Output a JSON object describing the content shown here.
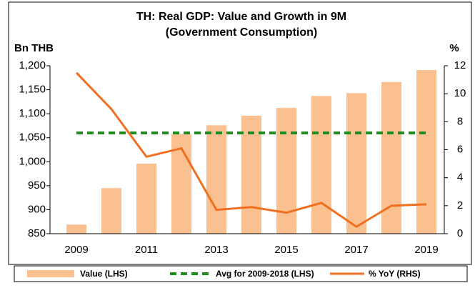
{
  "chart_data": {
    "type": "bar-line",
    "title": "TH: Real GDP: Value and Growth in 9M",
    "subtitle": "(Government Consumption)",
    "y_label": "Bn THB",
    "y2_label": "%",
    "categories": [
      "2009",
      null,
      "2011",
      null,
      "2013",
      null,
      "2015",
      null,
      "2017",
      null,
      "2019"
    ],
    "series": [
      {
        "name": "Value (LHS)",
        "type": "bar",
        "color": "#fac08f",
        "axis": "y",
        "values": [
          869,
          945,
          996,
          1058,
          1076,
          1096,
          1112,
          1137,
          1143,
          1166,
          1191
        ]
      },
      {
        "name": "Avg for 2009-2018 (LHS)",
        "type": "dashed-line",
        "color": "#1e8c1e",
        "axis": "y",
        "values": [
          1060,
          1060,
          1060,
          1060,
          1060,
          1060,
          1060,
          1060,
          1060,
          1060,
          1060
        ]
      },
      {
        "name": "% YoY (RHS)",
        "type": "line",
        "color": "#f07022",
        "axis": "y2",
        "values": [
          11.5,
          8.9,
          5.5,
          6.1,
          1.7,
          1.9,
          1.5,
          2.2,
          0.5,
          2.0,
          2.1
        ]
      }
    ],
    "ylim": [
      850,
      1200
    ],
    "yticks": [
      850,
      900,
      950,
      {
        "value": 1000,
        "label": "1,000"
      },
      {
        "value": 1050,
        "label": "1,050"
      },
      {
        "value": 1100,
        "label": "1,100"
      },
      {
        "value": 1150,
        "label": "1,150"
      },
      {
        "value": 1200,
        "label": "1,200"
      }
    ],
    "y2lim": [
      0,
      12
    ],
    "y2ticks": [
      0,
      2,
      4,
      6,
      8,
      10,
      12
    ],
    "legend": "bottom"
  }
}
